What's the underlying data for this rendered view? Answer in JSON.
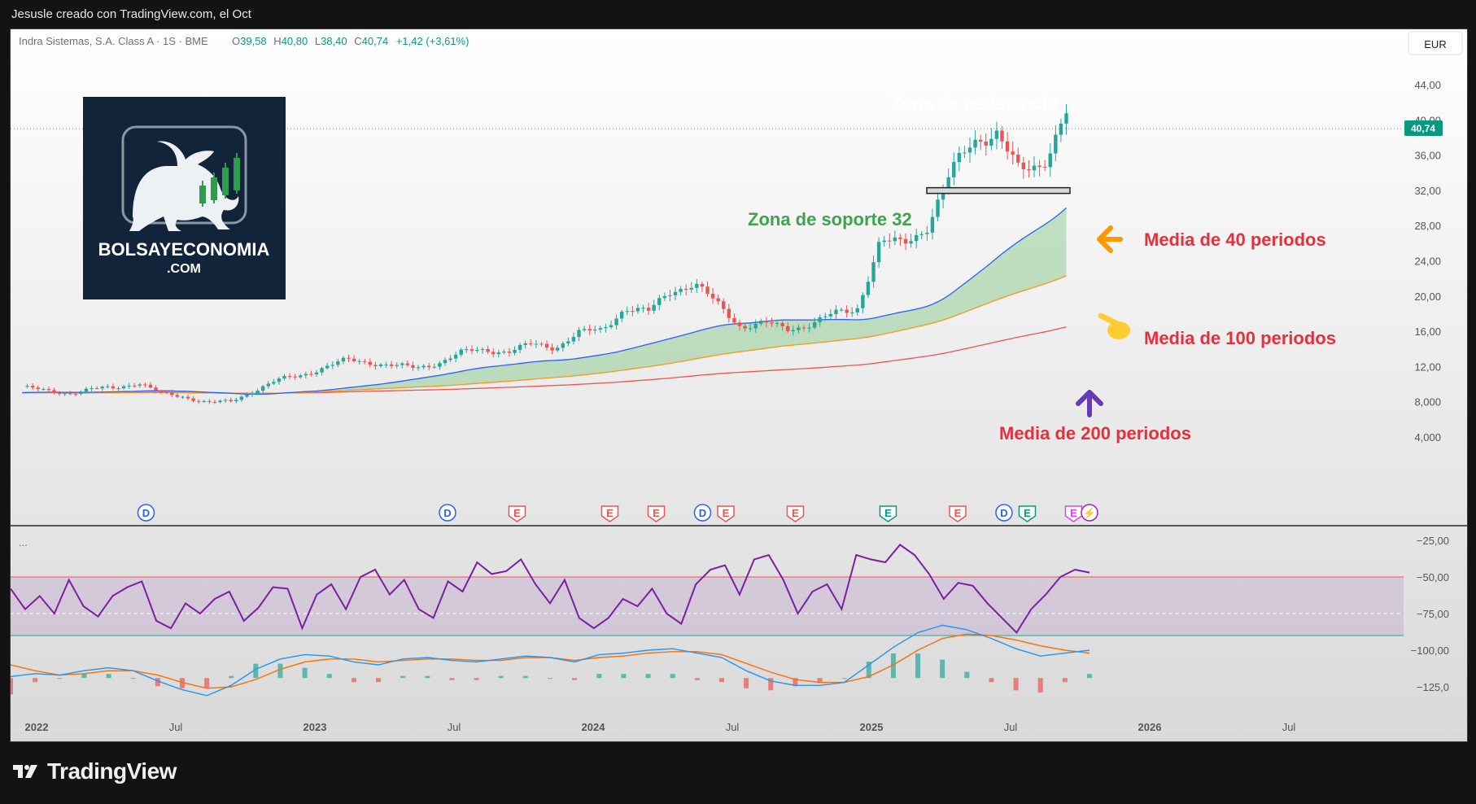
{
  "header": {
    "credit": "Jesusle creado con TradingView.com, el Oct"
  },
  "legend": {
    "symbol": "Indra Sistemas, S.A. Class A · 1S · BME",
    "o_label": "O",
    "o_value": "39,58",
    "h_label": "H",
    "h_value": "40,80",
    "l_label": "L",
    "l_value": "38,40",
    "c_label": "C",
    "c_value": "40,74",
    "change": "+1,42 (+3,61%)"
  },
  "currency_button": "EUR",
  "current_price_label": "40,74",
  "logo": {
    "line1": "BOLSAYECONOMIA",
    "line2": ".COM"
  },
  "annotations": {
    "resistance": "Zona de resistencia",
    "support": "Zona de soporte 32",
    "ma40": "Media de 40 periodos",
    "ma100": "Media de 100 periodos",
    "ma200": "Media de 200 periodos"
  },
  "oscillator_menu": "...",
  "footer": {
    "brand": "TradingView"
  },
  "colors": {
    "up": "#26a69a",
    "down": "#ef5350",
    "ma40": "#2962ff",
    "ma100": "#f59a1b",
    "ma200": "#ef5350",
    "fill": "#8cc88c",
    "rsi": "#7b1fa2",
    "macd": "#2196f3",
    "signal": "#ff6d00",
    "annotation_red": "#e5303b",
    "annotation_green": "#3fa34d",
    "arrow_orange": "#ff9800",
    "arrow_purple": "#673ab7"
  },
  "icons": [
    "dividend-icon",
    "earnings-icon",
    "split-icon",
    "arrow-left-icon",
    "pointing-hand-icon",
    "arrow-up-icon",
    "tradingview-logo-icon"
  ],
  "chart_data": [
    {
      "type": "candlestick",
      "title": "Indra Sistemas, S.A. Class A · 1S · BME",
      "y_ticks": [
        "44,00",
        "40,00",
        "36,00",
        "32,00",
        "28,00",
        "24,00",
        "20,00",
        "16,00",
        "12,00",
        "8,000",
        "4,000"
      ],
      "x_ticks": [
        "2022",
        "Jul",
        "2023",
        "Jul",
        "2024",
        "Jul",
        "2025",
        "Jul",
        "2026",
        "Jul"
      ],
      "ylim": [
        3,
        48
      ],
      "close_series": [
        {
          "t": "2022-01",
          "v": 9.7
        },
        {
          "t": "2022-02",
          "v": 9.2
        },
        {
          "t": "2022-03",
          "v": 9.0
        },
        {
          "t": "2022-04",
          "v": 9.4
        },
        {
          "t": "2022-05",
          "v": 9.6
        },
        {
          "t": "2022-06",
          "v": 10.2
        },
        {
          "t": "2022-07",
          "v": 8.9
        },
        {
          "t": "2022-08",
          "v": 8.6
        },
        {
          "t": "2022-09",
          "v": 7.9
        },
        {
          "t": "2022-10",
          "v": 8.0
        },
        {
          "t": "2022-11",
          "v": 9.3
        },
        {
          "t": "2022-12",
          "v": 10.4
        },
        {
          "t": "2023-01",
          "v": 11.0
        },
        {
          "t": "2023-02",
          "v": 11.9
        },
        {
          "t": "2023-03",
          "v": 12.7
        },
        {
          "t": "2023-04",
          "v": 12.5
        },
        {
          "t": "2023-05",
          "v": 12.1
        },
        {
          "t": "2023-06",
          "v": 11.8
        },
        {
          "t": "2023-07",
          "v": 12.5
        },
        {
          "t": "2023-08",
          "v": 13.6
        },
        {
          "t": "2023-09",
          "v": 13.9
        },
        {
          "t": "2023-10",
          "v": 13.7
        },
        {
          "t": "2023-11",
          "v": 14.5
        },
        {
          "t": "2023-12",
          "v": 14.2
        },
        {
          "t": "2024-01",
          "v": 15.8
        },
        {
          "t": "2024-02",
          "v": 16.1
        },
        {
          "t": "2024-03",
          "v": 18.7
        },
        {
          "t": "2024-04",
          "v": 18.1
        },
        {
          "t": "2024-05",
          "v": 20.7
        },
        {
          "t": "2024-06",
          "v": 21.4
        },
        {
          "t": "2024-07",
          "v": 19.0
        },
        {
          "t": "2024-08",
          "v": 16.6
        },
        {
          "t": "2024-09",
          "v": 16.9
        },
        {
          "t": "2024-10",
          "v": 16.2
        },
        {
          "t": "2024-11",
          "v": 16.9
        },
        {
          "t": "2024-12",
          "v": 17.9
        },
        {
          "t": "2025-01",
          "v": 18.5
        },
        {
          "t": "2025-02",
          "v": 26.2
        },
        {
          "t": "2025-03",
          "v": 25.8
        },
        {
          "t": "2025-04",
          "v": 27.9
        },
        {
          "t": "2025-05",
          "v": 33.6
        },
        {
          "t": "2025-06",
          "v": 37.6
        },
        {
          "t": "2025-07",
          "v": 38.8
        },
        {
          "t": "2025-08",
          "v": 33.9
        },
        {
          "t": "2025-09",
          "v": 35.1
        },
        {
          "t": "2025-10",
          "v": 40.74
        }
      ],
      "moving_averages": [
        {
          "name": "Media de 40 periodos",
          "end_value": 30.0
        },
        {
          "name": "Media de 100 periodos",
          "end_value": 22.3
        },
        {
          "name": "Media de 200 periodos",
          "end_value": 16.5
        }
      ],
      "support_level": 32,
      "events": [
        {
          "label": "D",
          "t": "2022-06"
        },
        {
          "label": "D",
          "t": "2023-07"
        },
        {
          "label": "E",
          "t": "2023-10"
        },
        {
          "label": "E",
          "t": "2024-02"
        },
        {
          "label": "E",
          "t": "2024-04"
        },
        {
          "label": "D",
          "t": "2024-06"
        },
        {
          "label": "E",
          "t": "2024-07"
        },
        {
          "label": "E",
          "t": "2024-10"
        },
        {
          "label": "E",
          "t": "2025-02"
        },
        {
          "label": "E",
          "t": "2025-05"
        },
        {
          "label": "D",
          "t": "2025-07"
        },
        {
          "label": "E",
          "t": "2025-08"
        },
        {
          "label": "E",
          "t": "2025-10"
        }
      ]
    },
    {
      "type": "line",
      "y_ticks": [
        "−25,00",
        "−50,00",
        "−75,00",
        "−100,00",
        "−125,0"
      ],
      "ylim": [
        -135,
        -18
      ],
      "band": [
        -50,
        -90
      ],
      "series": [
        {
          "values": [
            -58,
            -72,
            -63,
            -75,
            -52,
            -70,
            -77,
            -63,
            -57,
            -53,
            -80,
            -85,
            -68,
            -75,
            -65,
            -60,
            -80,
            -71,
            -57,
            -58,
            -85,
            -62,
            -55,
            -72,
            -50,
            -45,
            -62,
            -52,
            -72,
            -78,
            -53,
            -60,
            -40,
            -48,
            -46,
            -38,
            -55,
            -68,
            -52,
            -78,
            -85,
            -78,
            -65,
            -70,
            -58,
            -75,
            -82,
            -55,
            -45,
            -42,
            -62,
            -38,
            -35,
            -52,
            -75,
            -60,
            -55,
            -72,
            -35,
            -38,
            -40,
            -28,
            -35,
            -48,
            -65,
            -54,
            -56,
            -68,
            -78,
            -88,
            -72,
            -62,
            -50,
            -45,
            -47
          ]
        },
        {
          "values": [
            -118,
            -116,
            -117,
            -114,
            -112,
            -114,
            -121,
            -127,
            -131,
            -124,
            -113,
            -106,
            -103,
            -104,
            -108,
            -110,
            -106,
            -105,
            -107,
            -108,
            -106,
            -104,
            -105,
            -108,
            -103,
            -102,
            -100,
            -99,
            -102,
            -105,
            -114,
            -121,
            -124,
            -124,
            -122,
            -110,
            -98,
            -88,
            -83,
            -86,
            -92,
            -99,
            -104,
            -102,
            -100
          ]
        },
        {
          "values": [
            -110,
            -114,
            -117,
            -116,
            -114,
            -114,
            -117,
            -122,
            -126,
            -125,
            -120,
            -113,
            -108,
            -106,
            -106,
            -108,
            -107,
            -106,
            -106,
            -107,
            -107,
            -105,
            -105,
            -107,
            -105,
            -104,
            -102,
            -101,
            -101,
            -103,
            -109,
            -115,
            -120,
            -122,
            -122,
            -118,
            -110,
            -100,
            -92,
            -89,
            -90,
            -93,
            -97,
            -100,
            -102
          ]
        }
      ]
    }
  ]
}
